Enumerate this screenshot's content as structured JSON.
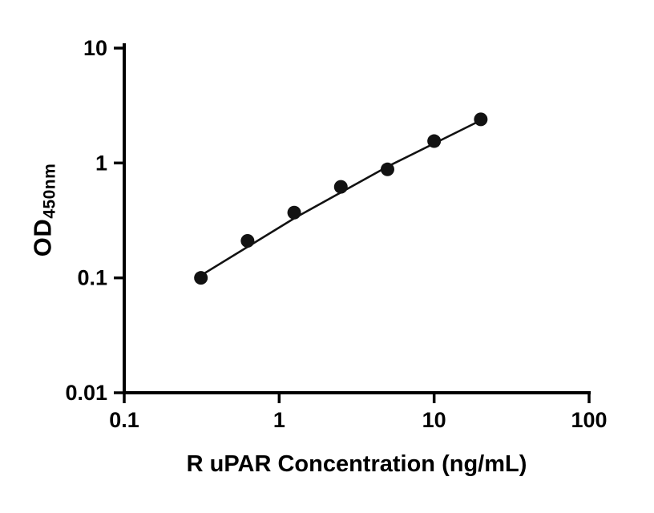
{
  "chart_data": {
    "type": "scatter",
    "title": "",
    "xlabel": "R uPAR Concentration (ng/mL)",
    "ylabel_main": "OD",
    "ylabel_sub": "450nm",
    "x_scale": "log",
    "y_scale": "log",
    "xlim": [
      0.1,
      100
    ],
    "ylim": [
      0.01,
      10
    ],
    "x_ticks": [
      {
        "value": 0.1,
        "label": "0.1"
      },
      {
        "value": 1,
        "label": "1"
      },
      {
        "value": 10,
        "label": "10"
      },
      {
        "value": 100,
        "label": "100"
      }
    ],
    "y_ticks": [
      {
        "value": 10,
        "label": "10"
      },
      {
        "value": 1,
        "label": "1"
      },
      {
        "value": 0.1,
        "label": "0.1"
      },
      {
        "value": 0.01,
        "label": "0.01"
      }
    ],
    "points": [
      {
        "x": 0.3125,
        "y": 0.1
      },
      {
        "x": 0.625,
        "y": 0.21
      },
      {
        "x": 1.25,
        "y": 0.37
      },
      {
        "x": 2.5,
        "y": 0.62
      },
      {
        "x": 5,
        "y": 0.88
      },
      {
        "x": 10,
        "y": 1.55
      },
      {
        "x": 20,
        "y": 2.4
      }
    ],
    "fit_line": [
      {
        "x": 0.3125,
        "y": 0.105
      },
      {
        "x": 1.25,
        "y": 0.33
      },
      {
        "x": 5,
        "y": 0.93
      },
      {
        "x": 20,
        "y": 2.35
      }
    ],
    "grid": false,
    "legend": false,
    "colors": {
      "axis": "#000000",
      "point": "#121212",
      "line": "#121212",
      "background": "#ffffff"
    }
  }
}
